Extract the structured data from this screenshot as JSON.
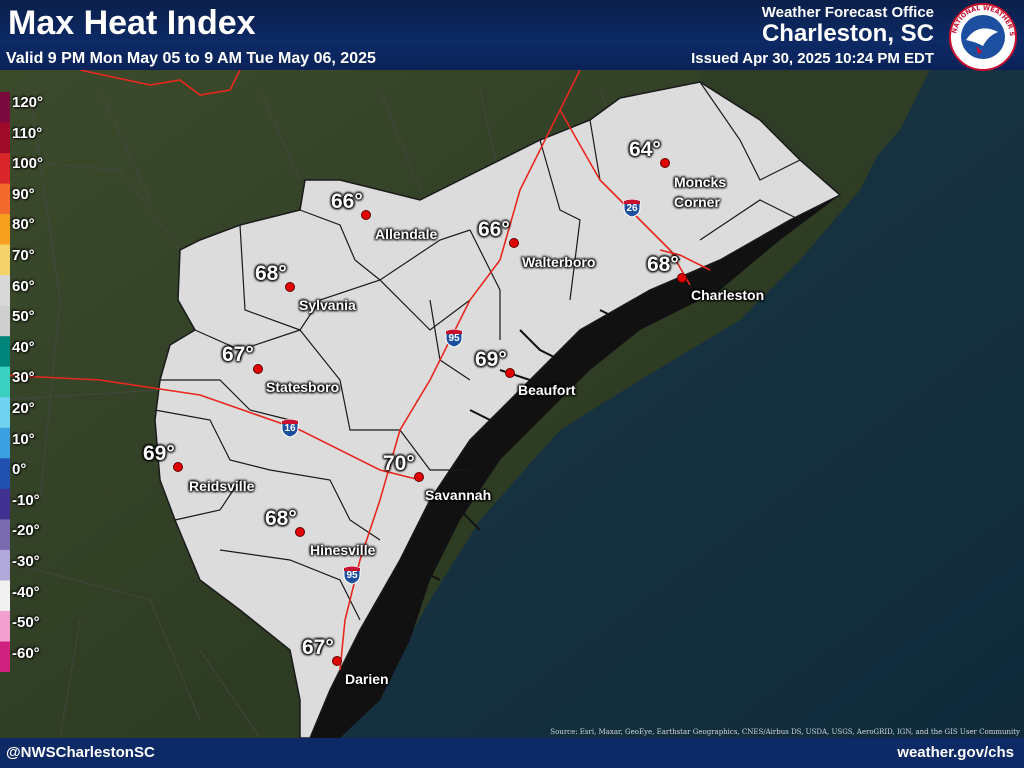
{
  "header": {
    "title": "Max Heat Index",
    "valid": "Valid 9 PM Mon May 05 to 9 AM Tue May 06, 2025",
    "office_line1": "Weather Forecast Office",
    "office_line2": "Charleston, SC",
    "issued": "Issued Apr 30, 2025 10:24 PM EDT"
  },
  "footer": {
    "handle": "@NWSCharlestonSC",
    "site": "weather.gov/chs",
    "source": "Source: Esri, Maxar, GeoEye, Earthstar Geographics, CNES/Airbus DS, USDA, USGS, AeroGRID, IGN, and the GIS User Community"
  },
  "logo": {
    "text": "NATIONAL WEATHER SERVICE"
  },
  "legend": {
    "labels": [
      "120°",
      "110°",
      "100°",
      "90°",
      "80°",
      "70°",
      "60°",
      "50°",
      "40°",
      "30°",
      "20°",
      "10°",
      "0°",
      "-10°",
      "-20°",
      "-30°",
      "-40°",
      "-50°",
      "-60°"
    ],
    "colors": [
      "#7a0a3e",
      "#a00a2a",
      "#d8262a",
      "#f26a2c",
      "#f6a21e",
      "#f5d36a",
      "#d8d8d8",
      "#cfcfcf",
      "#00857a",
      "#3ad0c0",
      "#6fd3f0",
      "#3aa0e0",
      "#2050b0",
      "#403090",
      "#7a6ab0",
      "#b0a8d8",
      "#f0f0f0",
      "#f2a0d0",
      "#d02080"
    ]
  },
  "map": {
    "colors": {
      "land_fill": "#dcdcdc",
      "outline": "#1a1a1a",
      "interstate": "#e8281e",
      "dot": "#e00000",
      "shield_blue": "#1c4fa0",
      "shield_red": "#c8102e"
    },
    "locations": [
      {
        "name": "Moncks Corner",
        "name_line1": "Moncks",
        "name_line2": "Corner",
        "value": "64°"
      },
      {
        "name": "Allendale",
        "value": "66°"
      },
      {
        "name": "Walterboro",
        "value": "66°"
      },
      {
        "name": "Sylvania",
        "value": "68°"
      },
      {
        "name": "Charleston",
        "value": "68°"
      },
      {
        "name": "Statesboro",
        "value": "67°"
      },
      {
        "name": "Beaufort",
        "value": "69°"
      },
      {
        "name": "Reidsville",
        "value": "69°"
      },
      {
        "name": "Savannah",
        "value": "70°"
      },
      {
        "name": "Hinesville",
        "value": "68°"
      },
      {
        "name": "Darien",
        "value": "67°"
      }
    ],
    "interstates": [
      "26",
      "95",
      "16",
      "95"
    ]
  }
}
